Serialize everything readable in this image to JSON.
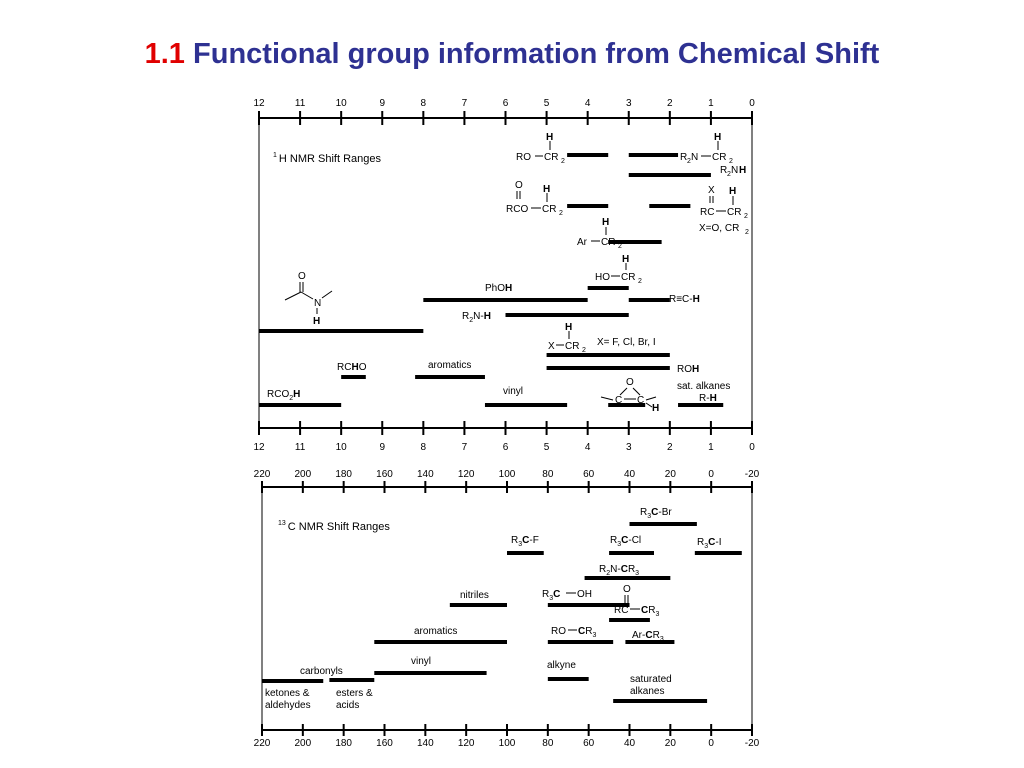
{
  "title": {
    "number": "1.1",
    "text": "Functional group information from Chemical Shift"
  },
  "h_chart": {
    "ticks": [
      "12",
      "11",
      "10",
      "9",
      "8",
      "7",
      "6",
      "5",
      "4",
      "3",
      "2",
      "1",
      "0"
    ],
    "label_pre": "1",
    "label_main": "H  NMR Shift Ranges",
    "bars": [
      {
        "from": 4.5,
        "to": 3.5,
        "row": "r1"
      },
      {
        "from": 3.0,
        "to": 1.8,
        "row": "r1"
      },
      {
        "from": 3.0,
        "to": 1.0,
        "row": "r2"
      },
      {
        "from": 4.5,
        "to": 3.5,
        "row": "r3"
      },
      {
        "from": 2.5,
        "to": 1.5,
        "row": "r3"
      },
      {
        "from": 3.5,
        "to": 2.2,
        "row": "r4"
      },
      {
        "from": 4.0,
        "to": 3.0,
        "row": "r5"
      },
      {
        "from": 8.0,
        "to": 4.0,
        "row": "r6"
      },
      {
        "from": 3.0,
        "to": 2.0,
        "row": "r6"
      },
      {
        "from": 6.0,
        "to": 3.0,
        "row": "r7"
      },
      {
        "from": 12.0,
        "to": 8.0,
        "row": "r8"
      },
      {
        "from": 5.0,
        "to": 2.0,
        "row": "r9"
      },
      {
        "from": 5.0,
        "to": 2.0,
        "row": "r10"
      },
      {
        "from": 10.0,
        "to": 9.4,
        "row": "r11"
      },
      {
        "from": 8.2,
        "to": 6.5,
        "row": "r11"
      },
      {
        "from": 12.0,
        "to": 10.0,
        "row": "r12"
      },
      {
        "from": 6.5,
        "to": 4.5,
        "row": "r12"
      },
      {
        "from": 3.5,
        "to": 2.6,
        "row": "r12"
      },
      {
        "from": 1.8,
        "to": 0.7,
        "row": "r12"
      }
    ],
    "labels": {
      "ro": "RO",
      "cr2": "CR",
      "sub2": "2",
      "h": "H",
      "r2n": "R",
      "n": "N",
      "r2nh_a": "R",
      "r2nh_b": "N",
      "o": "O",
      "rco": "RCO",
      "x": "X",
      "rc": "RC",
      "xeq": "X=O, CR",
      "ar": "Ar",
      "ho": "HO",
      "phoh_a": "PhO",
      "phoh_b": "H",
      "alkyne_a": "R≡C-",
      "alkyne_b": "H",
      "r2nh2_a": "R",
      "r2nh2_b": "N-",
      "r2nh2_c": "H",
      "xcr2_x": "X",
      "halides": "X= F, Cl, Br, I",
      "roh_a": "RO",
      "roh_b": "H",
      "rcho_a": "RC",
      "rcho_b": "H",
      "rcho_c": "O",
      "aromatics": "aromatics",
      "rco2h_a": "RCO",
      "rco2h_b": "2",
      "rco2h_c": "H",
      "vinyl": "vinyl",
      "satalk": "sat. alkanes",
      "rh_a": "R-",
      "rh_b": "H",
      "epox_o": "O",
      "epox_c1": "C",
      "epox_c2": "C",
      "amide_o": "O",
      "amide_n": "N",
      "amide_h": "H"
    }
  },
  "c_chart": {
    "ticks": [
      "220",
      "200",
      "180",
      "160",
      "140",
      "120",
      "100",
      "80",
      "60",
      "40",
      "20",
      "0",
      "-20"
    ],
    "label_pre": "13",
    "label_main": "C  NMR Shift Ranges",
    "bars": [
      {
        "from": 40,
        "to": 7,
        "row": "r1"
      },
      {
        "from": 100,
        "to": 82,
        "row": "r2"
      },
      {
        "from": 50,
        "to": 28,
        "row": "r2"
      },
      {
        "from": 8,
        "to": -15,
        "row": "r2"
      },
      {
        "from": 62,
        "to": 20,
        "row": "r3"
      },
      {
        "from": 80,
        "to": 40,
        "row": "r4"
      },
      {
        "from": 128,
        "to": 100,
        "row": "r4"
      },
      {
        "from": 50,
        "to": 30,
        "row": "r5"
      },
      {
        "from": 165,
        "to": 100,
        "row": "r6"
      },
      {
        "from": 80,
        "to": 48,
        "row": "r6"
      },
      {
        "from": 42,
        "to": 18,
        "row": "r6"
      },
      {
        "from": 220,
        "to": 190,
        "row": "r7"
      },
      {
        "from": 187,
        "to": 165,
        "row": "r7"
      },
      {
        "from": 165,
        "to": 110,
        "row": "r7"
      },
      {
        "from": 80,
        "to": 60,
        "row": "r8"
      },
      {
        "from": 48,
        "to": 2,
        "row": "r9"
      }
    ],
    "labels": {
      "r3cbr_a": "R",
      "r3cbr_s": "3",
      "r3cbr_b": "C",
      "r3cbr_c": "-Br",
      "r3cf_c": "-F",
      "r3ccl_c": "-Cl",
      "r3ci_c": "-I",
      "r2ncr3_a": "R",
      "r2ncr3_s": "2",
      "r2ncr3_b": "N-",
      "r2ncr3_c": "C",
      "r2ncr3_d": "R",
      "r2ncr3_s2": "3",
      "nitriles": "nitriles",
      "r3coh_c": "OH",
      "ketone_o": "O",
      "ketone_rc": "RC",
      "ketone_c": "C",
      "ketone_r": "R",
      "ketone_s": "3",
      "aromatics": "aromatics",
      "rocr3_a": "RO",
      "rocr3_c": "C",
      "rocr3_r": "R",
      "rocr3_s": "3",
      "arcr3_a": "Ar-",
      "arcr3_c": "C",
      "arcr3_r": "R",
      "arcr3_s": "3",
      "carbonyls": "carbonyls",
      "vinyl": "vinyl",
      "alkyne": "alkyne",
      "ketones1": "ketones &",
      "ketones2": "aldehydes",
      "esters1": "esters &",
      "esters2": "acids",
      "satalk1": "saturated",
      "satalk2": "alkanes"
    }
  }
}
